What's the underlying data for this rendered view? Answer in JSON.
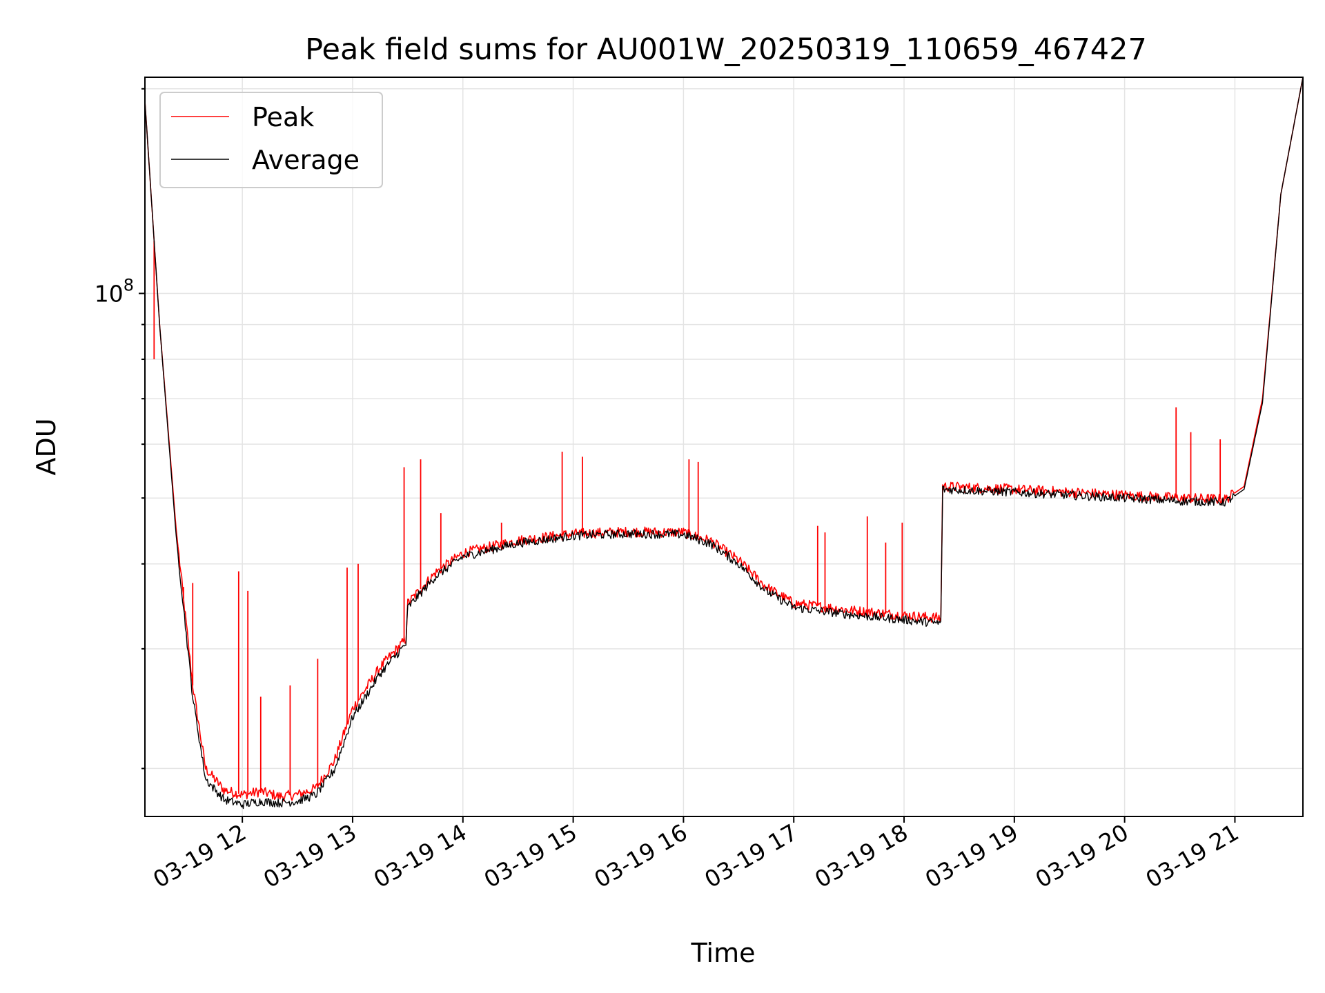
{
  "chart_data": {
    "type": "line",
    "title": "Peak field sums for AU001W_20250319_110659_467427",
    "xlabel": "Time",
    "ylabel": "ADU",
    "yscale": "log",
    "ylim": [
      17000000,
      208000000
    ],
    "xlim": [
      "2025-03-19 11:07",
      "2025-03-19 21:37"
    ],
    "x_ticks": [
      "03-19 12",
      "03-19 13",
      "03-19 14",
      "03-19 15",
      "03-19 16",
      "03-19 17",
      "03-19 18",
      "03-19 19",
      "03-19 20",
      "03-19 21"
    ],
    "y_ticks": [
      {
        "base": "10",
        "exp": "8",
        "value": 100000000
      }
    ],
    "grid": true,
    "legend": "upper-left",
    "series": [
      {
        "name": "Peak",
        "color": "#ff0000",
        "x": [
          "2025-03-19 11:07",
          "2025-03-19 11:15",
          "2025-03-19 11:24",
          "2025-03-19 11:33",
          "2025-03-19 11:40",
          "2025-03-19 11:50",
          "2025-03-19 12:00",
          "2025-03-19 12:10",
          "2025-03-19 12:20",
          "2025-03-19 12:30",
          "2025-03-19 12:40",
          "2025-03-19 12:50",
          "2025-03-19 13:00",
          "2025-03-19 13:15",
          "2025-03-19 13:29",
          "2025-03-19 13:30",
          "2025-03-19 13:45",
          "2025-03-19 14:00",
          "2025-03-19 14:30",
          "2025-03-19 15:00",
          "2025-03-19 15:30",
          "2025-03-19 16:00",
          "2025-03-19 16:15",
          "2025-03-19 16:30",
          "2025-03-19 16:45",
          "2025-03-19 17:00",
          "2025-03-19 17:30",
          "2025-03-19 18:00",
          "2025-03-19 18:20",
          "2025-03-19 18:21",
          "2025-03-19 19:00",
          "2025-03-19 19:30",
          "2025-03-19 20:00",
          "2025-03-19 20:30",
          "2025-03-19 20:55",
          "2025-03-19 21:05",
          "2025-03-19 21:15",
          "2025-03-19 21:25",
          "2025-03-19 21:37"
        ],
        "y": [
          192000000,
          90000000,
          45000000,
          26500000,
          20000000,
          18600000,
          18300000,
          18500000,
          18200000,
          18300000,
          18700000,
          20500000,
          24500000,
          28200000,
          31000000,
          35000000,
          38800000,
          41500000,
          43300000,
          44300000,
          44600000,
          44500000,
          43200000,
          40500000,
          37000000,
          35000000,
          34200000,
          33600000,
          33300000,
          52000000,
          51500000,
          51000000,
          50500000,
          50000000,
          49800000,
          52000000,
          70000000,
          140000000,
          208000000
        ]
      },
      {
        "name": "Average",
        "color": "#000000",
        "x": [
          "2025-03-19 11:07",
          "2025-03-19 11:15",
          "2025-03-19 11:24",
          "2025-03-19 11:33",
          "2025-03-19 11:40",
          "2025-03-19 11:50",
          "2025-03-19 12:00",
          "2025-03-19 12:10",
          "2025-03-19 12:20",
          "2025-03-19 12:30",
          "2025-03-19 12:40",
          "2025-03-19 12:50",
          "2025-03-19 13:00",
          "2025-03-19 13:15",
          "2025-03-19 13:29",
          "2025-03-19 13:30",
          "2025-03-19 13:45",
          "2025-03-19 14:00",
          "2025-03-19 14:30",
          "2025-03-19 15:00",
          "2025-03-19 15:30",
          "2025-03-19 16:00",
          "2025-03-19 16:15",
          "2025-03-19 16:30",
          "2025-03-19 16:45",
          "2025-03-19 17:00",
          "2025-03-19 17:30",
          "2025-03-19 18:00",
          "2025-03-19 18:20",
          "2025-03-19 18:21",
          "2025-03-19 19:00",
          "2025-03-19 19:30",
          "2025-03-19 20:00",
          "2025-03-19 20:30",
          "2025-03-19 20:55",
          "2025-03-19 21:05",
          "2025-03-19 21:15",
          "2025-03-19 21:25",
          "2025-03-19 21:37"
        ],
        "y": [
          192000000,
          90000000,
          44000000,
          25500000,
          19300000,
          18000000,
          17700000,
          17900000,
          17800000,
          17900000,
          18300000,
          19900000,
          23800000,
          27600000,
          30500000,
          34500000,
          38300000,
          41000000,
          42900000,
          44000000,
          44300000,
          44200000,
          42800000,
          40000000,
          36500000,
          34500000,
          33700000,
          33100000,
          32700000,
          51500000,
          51000000,
          50500000,
          50000000,
          49500000,
          49300000,
          51500000,
          69000000,
          140000000,
          208000000
        ]
      }
    ],
    "spikes": {
      "Peak": [
        {
          "x": "2025-03-19 11:12",
          "y": 80000000
        },
        {
          "x": "2025-03-19 11:28",
          "y": 37000000
        },
        {
          "x": "2025-03-19 11:33",
          "y": 37500000
        },
        {
          "x": "2025-03-19 11:58",
          "y": 39000000
        },
        {
          "x": "2025-03-19 12:03",
          "y": 36500000
        },
        {
          "x": "2025-03-19 12:10",
          "y": 25500000
        },
        {
          "x": "2025-03-19 12:26",
          "y": 26500000
        },
        {
          "x": "2025-03-19 12:41",
          "y": 29000000
        },
        {
          "x": "2025-03-19 12:57",
          "y": 39500000
        },
        {
          "x": "2025-03-19 13:03",
          "y": 40000000
        },
        {
          "x": "2025-03-19 13:28",
          "y": 55500000
        },
        {
          "x": "2025-03-19 13:37",
          "y": 57000000
        },
        {
          "x": "2025-03-19 13:48",
          "y": 47500000
        },
        {
          "x": "2025-03-19 14:21",
          "y": 46000000
        },
        {
          "x": "2025-03-19 14:54",
          "y": 58500000
        },
        {
          "x": "2025-03-19 15:05",
          "y": 57500000
        },
        {
          "x": "2025-03-19 16:03",
          "y": 57000000
        },
        {
          "x": "2025-03-19 16:08",
          "y": 56500000
        },
        {
          "x": "2025-03-19 17:13",
          "y": 45500000
        },
        {
          "x": "2025-03-19 17:17",
          "y": 44500000
        },
        {
          "x": "2025-03-19 17:40",
          "y": 47000000
        },
        {
          "x": "2025-03-19 17:50",
          "y": 43000000
        },
        {
          "x": "2025-03-19 17:59",
          "y": 46000000
        },
        {
          "x": "2025-03-19 20:28",
          "y": 68000000
        },
        {
          "x": "2025-03-19 20:36",
          "y": 62500000
        },
        {
          "x": "2025-03-19 20:52",
          "y": 61000000
        }
      ]
    }
  }
}
